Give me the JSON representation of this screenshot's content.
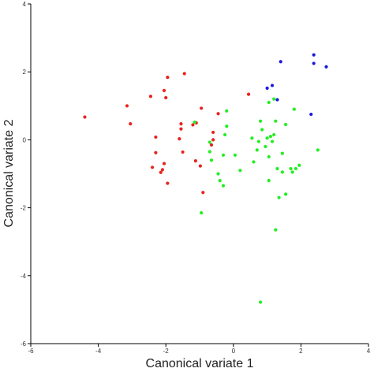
{
  "chart_data": {
    "type": "scatter",
    "title": "",
    "xlabel": "Canonical variate 1",
    "ylabel": "Canonical variate 2",
    "xlim": [
      -6,
      4
    ],
    "ylim": [
      -6,
      4
    ],
    "x_ticks": [
      "-6",
      "-4",
      "-2",
      "0",
      "2",
      "4"
    ],
    "y_ticks": [
      "-6",
      "-4",
      "-2",
      "0",
      "2",
      "4"
    ],
    "x_tick_values": [
      -6,
      -4,
      -2,
      0,
      2,
      4
    ],
    "y_tick_values": [
      -6,
      -4,
      -2,
      0,
      2,
      4
    ],
    "grid": false,
    "legend": "none",
    "series": [
      {
        "color": "#e8231f",
        "points": [
          [
            -4.4,
            0.67
          ],
          [
            -3.15,
            1.0
          ],
          [
            -3.05,
            0.47
          ],
          [
            -2.45,
            1.28
          ],
          [
            -2.05,
            1.45
          ],
          [
            -2.0,
            1.24
          ],
          [
            -1.95,
            1.84
          ],
          [
            -1.45,
            1.95
          ],
          [
            -0.95,
            0.93
          ],
          [
            -0.45,
            0.77
          ],
          [
            0.45,
            1.34
          ],
          [
            -2.3,
            0.08
          ],
          [
            -2.3,
            -0.38
          ],
          [
            -2.05,
            -0.7
          ],
          [
            -2.1,
            -0.88
          ],
          [
            -2.15,
            -0.96
          ],
          [
            -1.95,
            -1.28
          ],
          [
            -2.4,
            -0.81
          ],
          [
            -1.55,
            0.32
          ],
          [
            -1.55,
            0.47
          ],
          [
            -1.6,
            0.03
          ],
          [
            -1.5,
            -0.36
          ],
          [
            -1.2,
            0.44
          ],
          [
            -1.12,
            -0.62
          ],
          [
            -1.1,
            0.5
          ],
          [
            -0.98,
            -0.77
          ],
          [
            -0.9,
            -1.55
          ],
          [
            -0.6,
            0.22
          ],
          [
            -0.6,
            0.0
          ],
          [
            -0.65,
            -0.15
          ]
        ]
      },
      {
        "color": "#22ee22",
        "points": [
          [
            -1.15,
            0.52
          ],
          [
            -0.7,
            -0.07
          ],
          [
            -0.7,
            -0.35
          ],
          [
            -0.65,
            -0.6
          ],
          [
            -0.45,
            -1.0
          ],
          [
            -0.4,
            -1.2
          ],
          [
            -0.3,
            -0.45
          ],
          [
            -0.25,
            0.15
          ],
          [
            -0.2,
            0.4
          ],
          [
            -0.2,
            0.85
          ],
          [
            -0.3,
            -1.35
          ],
          [
            -0.95,
            -2.15
          ],
          [
            0.05,
            -0.45
          ],
          [
            0.2,
            -0.9
          ],
          [
            0.55,
            0.05
          ],
          [
            0.6,
            -0.65
          ],
          [
            0.7,
            -0.3
          ],
          [
            0.75,
            -0.05
          ],
          [
            0.8,
            0.55
          ],
          [
            0.85,
            0.3
          ],
          [
            0.95,
            -0.2
          ],
          [
            1.0,
            0.05
          ],
          [
            1.05,
            -1.2
          ],
          [
            1.05,
            -0.5
          ],
          [
            1.1,
            0.1
          ],
          [
            1.2,
            1.2
          ],
          [
            1.2,
            0.15
          ],
          [
            1.25,
            0.55
          ],
          [
            1.3,
            -0.85
          ],
          [
            1.35,
            -1.7
          ],
          [
            1.45,
            -0.95
          ],
          [
            1.45,
            -0.4
          ],
          [
            1.55,
            0.45
          ],
          [
            1.55,
            -1.6
          ],
          [
            1.7,
            -0.85
          ],
          [
            1.75,
            -0.95
          ],
          [
            1.8,
            0.9
          ],
          [
            1.85,
            -0.85
          ],
          [
            1.95,
            -0.75
          ],
          [
            2.5,
            -0.3
          ],
          [
            1.25,
            -2.65
          ],
          [
            0.8,
            -4.78
          ],
          [
            1.05,
            1.1
          ],
          [
            1.15,
            -0.05
          ]
        ]
      },
      {
        "color": "#1a1adf",
        "points": [
          [
            2.38,
            2.5
          ],
          [
            2.38,
            2.25
          ],
          [
            2.75,
            2.15
          ],
          [
            1.4,
            2.3
          ],
          [
            1.3,
            1.18
          ],
          [
            1.15,
            1.6
          ],
          [
            1.0,
            1.52
          ],
          [
            2.3,
            0.75
          ]
        ]
      }
    ]
  }
}
